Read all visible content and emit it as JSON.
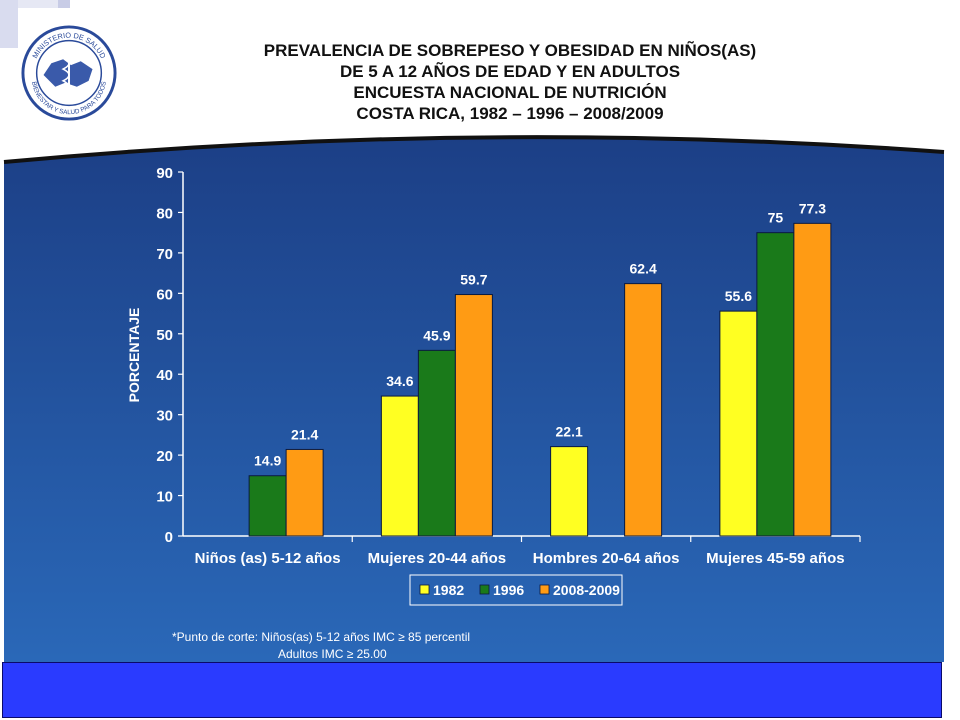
{
  "header": {
    "title_lines": [
      "PREVALENCIA DE SOBREPESO Y OBESIDAD EN NIÑOS(AS)",
      "DE 5 A 12 AÑOS DE EDAD Y EN ADULTOS",
      "ENCUESTA NACIONAL DE NUTRICIÓN",
      "COSTA RICA, 1982 – 1996 – 2008/2009"
    ],
    "logo_text_top": "MINISTERIO DE SALUD",
    "logo_text_bottom": "BIENESTAR Y SALUD PARA TODOS"
  },
  "colors": {
    "bg_top": "#1c3f86",
    "bg_bottom": "#2a68b8",
    "series_1982": "#ffff22",
    "series_1996": "#1a7a1a",
    "series_2008": "#ff9b14",
    "footer_band": "#2a3bff"
  },
  "chart_data": {
    "type": "bar",
    "title": "PREVALENCIA DE SOBREPESO Y OBESIDAD EN NIÑOS(AS) DE 5 A 12 AÑOS DE EDAD Y EN ADULTOS ENCUESTA NACIONAL DE NUTRICIÓN COSTA RICA, 1982 – 1996 – 2008/2009",
    "ylabel": "PORCENTAJE",
    "xlabel": "",
    "ylim": [
      0,
      90
    ],
    "yticks": [
      0,
      10,
      20,
      30,
      40,
      50,
      60,
      70,
      80,
      90
    ],
    "categories": [
      "Niños (as) 5-12 años",
      "Mujeres 20-44 años",
      "Hombres 20-64 años",
      "Mujeres 45-59 años"
    ],
    "series": [
      {
        "name": "1982",
        "values": [
          null,
          34.6,
          22.1,
          55.6
        ],
        "labels": [
          "",
          "34.6",
          "22.1",
          "55.6"
        ]
      },
      {
        "name": "1996",
        "values": [
          14.9,
          45.9,
          null,
          75
        ],
        "labels": [
          "14.9",
          "45.9",
          "",
          "75"
        ]
      },
      {
        "name": "2008-2009",
        "values": [
          21.4,
          59.7,
          62.4,
          77.3
        ],
        "labels": [
          "21.4",
          "59.7",
          "62.4",
          "77.3"
        ]
      }
    ],
    "legend_position": "bottom-center",
    "grid": false
  },
  "footnote": {
    "line1": "*Punto de corte: Niños(as) 5-12 años IMC ≥ 85 percentil",
    "line2": "Adultos  IMC ≥ 25.00"
  }
}
